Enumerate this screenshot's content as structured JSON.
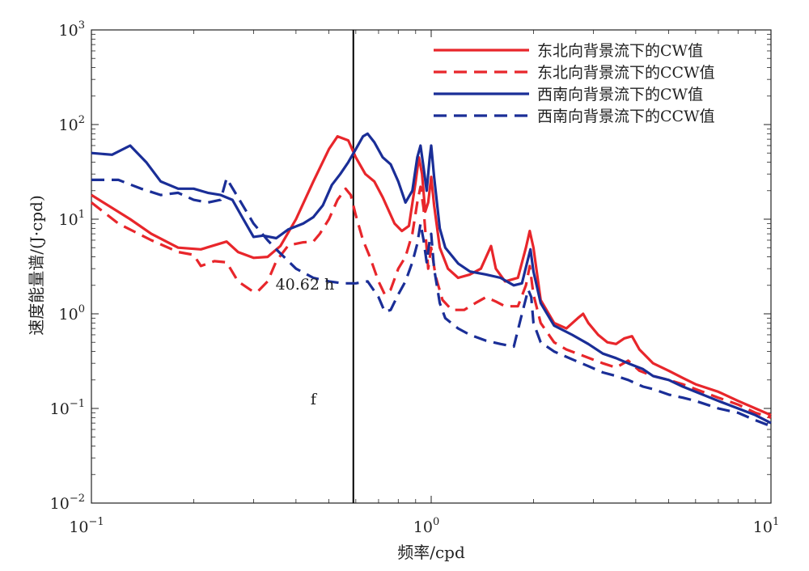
{
  "chart_data": {
    "type": "line",
    "title": "",
    "xlabel": "频率/cpd",
    "ylabel": "速度能量谱/(J·cpd)",
    "xscale": "log",
    "yscale": "log",
    "xlim": [
      0.1,
      10
    ],
    "ylim": [
      0.01,
      1000
    ],
    "grid": false,
    "legend_position": "top-right",
    "x_ticks": [
      {
        "value": 0.1,
        "base": "10",
        "exp": "−1"
      },
      {
        "value": 1,
        "base": "10",
        "exp": "0"
      },
      {
        "value": 10,
        "base": "10",
        "exp": "1"
      }
    ],
    "y_ticks": [
      {
        "value": 0.01,
        "base": "10",
        "exp": "−2"
      },
      {
        "value": 0.1,
        "base": "10",
        "exp": "−1"
      },
      {
        "value": 1,
        "base": "10",
        "exp": "0"
      },
      {
        "value": 10,
        "base": "10",
        "exp": "1"
      },
      {
        "value": 100,
        "base": "10",
        "exp": "2"
      },
      {
        "value": 1000,
        "base": "10",
        "exp": "3"
      }
    ],
    "vline": {
      "x": 0.59,
      "color": "#000000"
    },
    "annotations": [
      {
        "text": "40.62 h",
        "x": 0.425,
        "y": 1.8
      },
      {
        "text": "f",
        "x": 0.45,
        "y": 0.11
      }
    ],
    "series": [
      {
        "name": "东北向背景流下的CW值",
        "color": "#e8262b",
        "dash": "solid",
        "points": [
          [
            0.1,
            18
          ],
          [
            0.13,
            10
          ],
          [
            0.15,
            7
          ],
          [
            0.18,
            5
          ],
          [
            0.21,
            4.8
          ],
          [
            0.25,
            5.8
          ],
          [
            0.27,
            4.5
          ],
          [
            0.3,
            3.9
          ],
          [
            0.33,
            4
          ],
          [
            0.36,
            5.2
          ],
          [
            0.4,
            10
          ],
          [
            0.45,
            25
          ],
          [
            0.5,
            55
          ],
          [
            0.53,
            75
          ],
          [
            0.57,
            68
          ],
          [
            0.6,
            45
          ],
          [
            0.64,
            30
          ],
          [
            0.68,
            25
          ],
          [
            0.72,
            17
          ],
          [
            0.78,
            9
          ],
          [
            0.82,
            7.5
          ],
          [
            0.86,
            8.5
          ],
          [
            0.9,
            25
          ],
          [
            0.92,
            45
          ],
          [
            0.94,
            30
          ],
          [
            0.96,
            12
          ],
          [
            0.98,
            15
          ],
          [
            1.0,
            28
          ],
          [
            1.02,
            14
          ],
          [
            1.06,
            5
          ],
          [
            1.12,
            3
          ],
          [
            1.2,
            2.4
          ],
          [
            1.3,
            2.6
          ],
          [
            1.4,
            3
          ],
          [
            1.5,
            5.2
          ],
          [
            1.55,
            3
          ],
          [
            1.65,
            2.2
          ],
          [
            1.8,
            2.4
          ],
          [
            1.9,
            5
          ],
          [
            1.95,
            7.5
          ],
          [
            2.0,
            5
          ],
          [
            2.1,
            1.4
          ],
          [
            2.3,
            0.8
          ],
          [
            2.5,
            0.7
          ],
          [
            2.7,
            0.9
          ],
          [
            2.8,
            1
          ],
          [
            2.9,
            0.8
          ],
          [
            3.1,
            0.6
          ],
          [
            3.3,
            0.5
          ],
          [
            3.5,
            0.48
          ],
          [
            3.7,
            0.55
          ],
          [
            3.9,
            0.58
          ],
          [
            4.1,
            0.42
          ],
          [
            4.5,
            0.3
          ],
          [
            5,
            0.25
          ],
          [
            5.5,
            0.21
          ],
          [
            6,
            0.18
          ],
          [
            7,
            0.15
          ],
          [
            8,
            0.12
          ],
          [
            9,
            0.1
          ],
          [
            10,
            0.085
          ]
        ]
      },
      {
        "name": "东北向背景流下的CCW值",
        "color": "#e8262b",
        "dash": "dashed",
        "points": [
          [
            0.1,
            15
          ],
          [
            0.12,
            9
          ],
          [
            0.15,
            6
          ],
          [
            0.18,
            4.5
          ],
          [
            0.2,
            4.2
          ],
          [
            0.21,
            3.2
          ],
          [
            0.23,
            3.6
          ],
          [
            0.25,
            3.5
          ],
          [
            0.27,
            2.2
          ],
          [
            0.3,
            1.7
          ],
          [
            0.31,
            1.75
          ],
          [
            0.33,
            2.2
          ],
          [
            0.35,
            3.6
          ],
          [
            0.38,
            5.3
          ],
          [
            0.42,
            5.7
          ],
          [
            0.45,
            5.8
          ],
          [
            0.47,
            7
          ],
          [
            0.5,
            10
          ],
          [
            0.53,
            16
          ],
          [
            0.56,
            21
          ],
          [
            0.58,
            18
          ],
          [
            0.6,
            11
          ],
          [
            0.63,
            6
          ],
          [
            0.66,
            4
          ],
          [
            0.7,
            2.2
          ],
          [
            0.73,
            1.6
          ],
          [
            0.76,
            1.8
          ],
          [
            0.8,
            3
          ],
          [
            0.84,
            4
          ],
          [
            0.88,
            7
          ],
          [
            0.91,
            15
          ],
          [
            0.93,
            22
          ],
          [
            0.95,
            13
          ],
          [
            0.98,
            3
          ],
          [
            1.0,
            5
          ],
          [
            1.03,
            2.5
          ],
          [
            1.08,
            1.4
          ],
          [
            1.15,
            1.1
          ],
          [
            1.25,
            1.1
          ],
          [
            1.35,
            1.3
          ],
          [
            1.45,
            1.5
          ],
          [
            1.55,
            1.35
          ],
          [
            1.65,
            1.2
          ],
          [
            1.8,
            1.2
          ],
          [
            1.9,
            2
          ],
          [
            1.95,
            3.2
          ],
          [
            2.0,
            1.6
          ],
          [
            2.1,
            0.8
          ],
          [
            2.3,
            0.5
          ],
          [
            2.5,
            0.42
          ],
          [
            2.8,
            0.36
          ],
          [
            3.2,
            0.3
          ],
          [
            3.5,
            0.27
          ],
          [
            3.8,
            0.32
          ],
          [
            4.1,
            0.25
          ],
          [
            4.5,
            0.22
          ],
          [
            5,
            0.2
          ],
          [
            5.5,
            0.18
          ],
          [
            6,
            0.16
          ],
          [
            7,
            0.13
          ],
          [
            8,
            0.11
          ],
          [
            9,
            0.09
          ],
          [
            10,
            0.08
          ]
        ]
      },
      {
        "name": "西南向背景流下的CW值",
        "color": "#1a2e97",
        "dash": "solid",
        "points": [
          [
            0.1,
            50
          ],
          [
            0.115,
            48
          ],
          [
            0.13,
            60
          ],
          [
            0.145,
            40
          ],
          [
            0.16,
            25
          ],
          [
            0.18,
            21
          ],
          [
            0.2,
            21
          ],
          [
            0.22,
            19
          ],
          [
            0.24,
            18
          ],
          [
            0.26,
            16
          ],
          [
            0.28,
            10
          ],
          [
            0.3,
            6.5
          ],
          [
            0.32,
            6.7
          ],
          [
            0.35,
            6.3
          ],
          [
            0.38,
            7.8
          ],
          [
            0.42,
            9
          ],
          [
            0.45,
            10.5
          ],
          [
            0.48,
            14
          ],
          [
            0.51,
            23
          ],
          [
            0.54,
            30
          ],
          [
            0.57,
            40
          ],
          [
            0.6,
            55
          ],
          [
            0.63,
            75
          ],
          [
            0.65,
            80
          ],
          [
            0.68,
            65
          ],
          [
            0.72,
            45
          ],
          [
            0.76,
            38
          ],
          [
            0.8,
            25
          ],
          [
            0.84,
            15
          ],
          [
            0.88,
            20
          ],
          [
            0.91,
            45
          ],
          [
            0.93,
            60
          ],
          [
            0.95,
            35
          ],
          [
            0.97,
            20
          ],
          [
            0.99,
            45
          ],
          [
            1.0,
            60
          ],
          [
            1.02,
            28
          ],
          [
            1.06,
            8
          ],
          [
            1.1,
            5
          ],
          [
            1.2,
            3.4
          ],
          [
            1.3,
            2.8
          ],
          [
            1.45,
            2.6
          ],
          [
            1.6,
            2.4
          ],
          [
            1.75,
            2
          ],
          [
            1.85,
            2.1
          ],
          [
            1.92,
            3.6
          ],
          [
            1.96,
            4.8
          ],
          [
            2.0,
            2.8
          ],
          [
            2.1,
            1.3
          ],
          [
            2.3,
            0.75
          ],
          [
            2.6,
            0.6
          ],
          [
            2.9,
            0.48
          ],
          [
            3.2,
            0.38
          ],
          [
            3.5,
            0.34
          ],
          [
            3.8,
            0.3
          ],
          [
            4.2,
            0.26
          ],
          [
            4.5,
            0.22
          ],
          [
            5,
            0.2
          ],
          [
            5.5,
            0.17
          ],
          [
            6,
            0.15
          ],
          [
            7,
            0.12
          ],
          [
            8,
            0.1
          ],
          [
            9,
            0.085
          ],
          [
            10,
            0.07
          ]
        ]
      },
      {
        "name": "西南向背景流下的CCW值",
        "color": "#1a2e97",
        "dash": "dashed",
        "points": [
          [
            0.1,
            26
          ],
          [
            0.12,
            26
          ],
          [
            0.14,
            21
          ],
          [
            0.16,
            18
          ],
          [
            0.18,
            19
          ],
          [
            0.2,
            16
          ],
          [
            0.22,
            15
          ],
          [
            0.24,
            16
          ],
          [
            0.25,
            27
          ],
          [
            0.27,
            17
          ],
          [
            0.3,
            9
          ],
          [
            0.33,
            6
          ],
          [
            0.35,
            4.8
          ],
          [
            0.4,
            3
          ],
          [
            0.45,
            2.4
          ],
          [
            0.5,
            2.2
          ],
          [
            0.55,
            2.1
          ],
          [
            0.6,
            2.1
          ],
          [
            0.65,
            2.2
          ],
          [
            0.7,
            1.5
          ],
          [
            0.73,
            1.05
          ],
          [
            0.76,
            1.1
          ],
          [
            0.8,
            1.6
          ],
          [
            0.84,
            2.2
          ],
          [
            0.88,
            3.5
          ],
          [
            0.91,
            5.5
          ],
          [
            0.93,
            9
          ],
          [
            0.95,
            6
          ],
          [
            0.97,
            3.5
          ],
          [
            0.99,
            6
          ],
          [
            1.0,
            7
          ],
          [
            1.02,
            3
          ],
          [
            1.06,
            1.3
          ],
          [
            1.1,
            0.9
          ],
          [
            1.2,
            0.7
          ],
          [
            1.3,
            0.6
          ],
          [
            1.45,
            0.52
          ],
          [
            1.6,
            0.48
          ],
          [
            1.75,
            0.45
          ],
          [
            1.85,
            1
          ],
          [
            1.93,
            1.8
          ],
          [
            1.97,
            1.5
          ],
          [
            2.0,
            0.8
          ],
          [
            2.1,
            0.5
          ],
          [
            2.3,
            0.4
          ],
          [
            2.6,
            0.33
          ],
          [
            2.9,
            0.28
          ],
          [
            3.2,
            0.24
          ],
          [
            3.5,
            0.22
          ],
          [
            3.8,
            0.2
          ],
          [
            4.2,
            0.17
          ],
          [
            4.5,
            0.16
          ],
          [
            5,
            0.14
          ],
          [
            5.5,
            0.13
          ],
          [
            6,
            0.12
          ],
          [
            7,
            0.1
          ],
          [
            8,
            0.09
          ],
          [
            9,
            0.075
          ],
          [
            10,
            0.065
          ]
        ]
      }
    ]
  }
}
